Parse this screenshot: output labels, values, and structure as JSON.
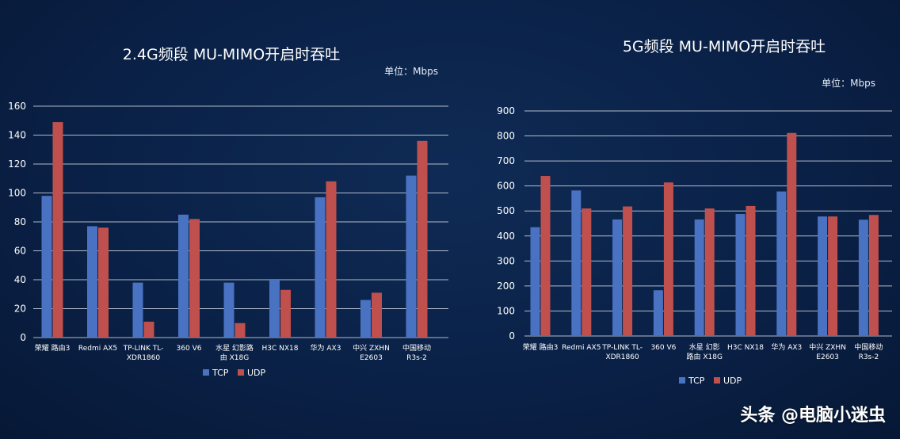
{
  "colors": {
    "tcp": "#4a72c2",
    "udp": "#c0504d",
    "grid": "#cfd6e2"
  },
  "watermark": "头条 @电脑小迷虫",
  "chart_data": [
    {
      "type": "bar",
      "title": "2.4G频段 MU-MIMO开启时吞吐",
      "unit_label": "单位：Mbps",
      "categories": [
        [
          "荣耀 路由3"
        ],
        [
          "Redmi AX5"
        ],
        [
          "TP-LINK TL-",
          "XDR1860"
        ],
        [
          "360 V6"
        ],
        [
          "水星 幻影路",
          "由 X18G"
        ],
        [
          "H3C NX18"
        ],
        [
          "华为 AX3"
        ],
        [
          "中兴 ZXHN",
          "E2603"
        ],
        [
          "中国移动",
          "R3s-2"
        ]
      ],
      "series": [
        {
          "name": "TCP",
          "values": [
            98,
            77,
            38,
            85,
            38,
            40,
            97,
            26,
            112
          ]
        },
        {
          "name": "UDP",
          "values": [
            149,
            76,
            11,
            82,
            10,
            33,
            108,
            31,
            136
          ]
        }
      ],
      "ylim": [
        0,
        160
      ],
      "yticks": [
        0,
        20,
        40,
        60,
        80,
        100,
        120,
        140,
        160
      ],
      "grid": true,
      "legend": "bottom"
    },
    {
      "type": "bar",
      "title": "5G频段 MU-MIMO开启时吞吐",
      "unit_label": "单位：Mbps",
      "categories": [
        [
          "荣耀 路由3"
        ],
        [
          "Redmi AX5"
        ],
        [
          "TP-LINK TL-",
          "XDR1860"
        ],
        [
          "360 V6"
        ],
        [
          "水星 幻影",
          "路由 X18G"
        ],
        [
          "H3C NX18"
        ],
        [
          "华为 AX3"
        ],
        [
          "中兴 ZXHN",
          "E2603"
        ],
        [
          "中国移动",
          "R3s-2"
        ]
      ],
      "series": [
        {
          "name": "TCP",
          "values": [
            435,
            582,
            466,
            183,
            466,
            488,
            578,
            478,
            465
          ]
        },
        {
          "name": "UDP",
          "values": [
            640,
            510,
            518,
            614,
            510,
            520,
            812,
            478,
            484
          ]
        }
      ],
      "ylim": [
        0,
        900
      ],
      "yticks": [
        0,
        100,
        200,
        300,
        400,
        500,
        600,
        700,
        800,
        900
      ],
      "grid": true,
      "legend": "bottom"
    }
  ]
}
